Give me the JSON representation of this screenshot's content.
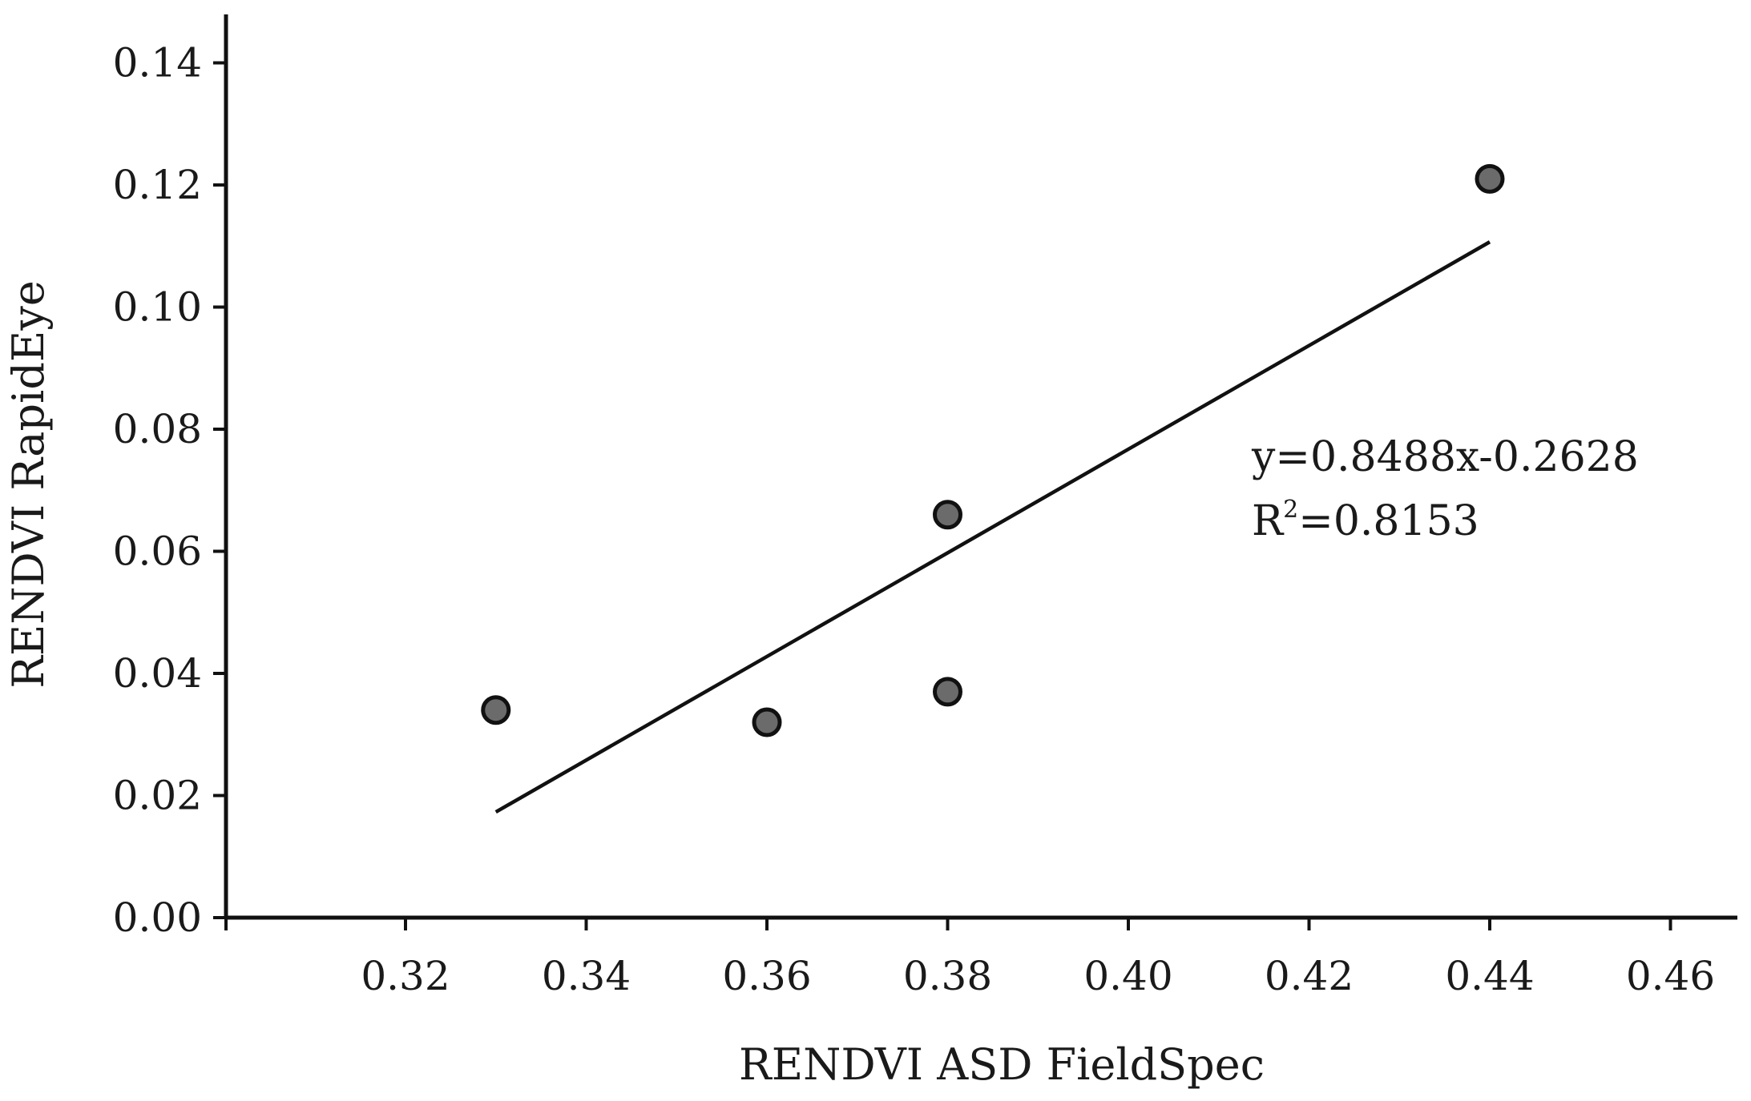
{
  "chart_data": {
    "type": "scatter",
    "xlabel": "RENDVI ASD FieldSpec",
    "ylabel": "RENDVI RapidEye",
    "xlim": [
      0.3,
      0.465
    ],
    "ylim": [
      0.0,
      0.148
    ],
    "x_ticks": [
      0.32,
      0.34,
      0.36,
      0.38,
      0.4,
      0.42,
      0.44,
      0.46
    ],
    "x_tick_labels": [
      "0.32",
      "0.34",
      "0.36",
      "0.38",
      "0.40",
      "0.42",
      "0.44",
      "0.46"
    ],
    "y_ticks": [
      0.0,
      0.02,
      0.04,
      0.06,
      0.08,
      0.1,
      0.12,
      0.14
    ],
    "y_tick_labels": [
      "0.00",
      "0.02",
      "0.04",
      "0.06",
      "0.08",
      "0.10",
      "0.12",
      "0.14"
    ],
    "points": [
      {
        "x": 0.33,
        "y": 0.034
      },
      {
        "x": 0.36,
        "y": 0.032
      },
      {
        "x": 0.38,
        "y": 0.037
      },
      {
        "x": 0.38,
        "y": 0.066
      },
      {
        "x": 0.44,
        "y": 0.121
      }
    ],
    "regression": {
      "slope": 0.8488,
      "intercept": -0.2628,
      "x_range": [
        0.33,
        0.44
      ],
      "equation_text": "y=0.8488x-0.2628",
      "r2_prefix": "R",
      "r2_superscript": "2",
      "r2_value_text": "=0.8153"
    },
    "grid": false
  }
}
